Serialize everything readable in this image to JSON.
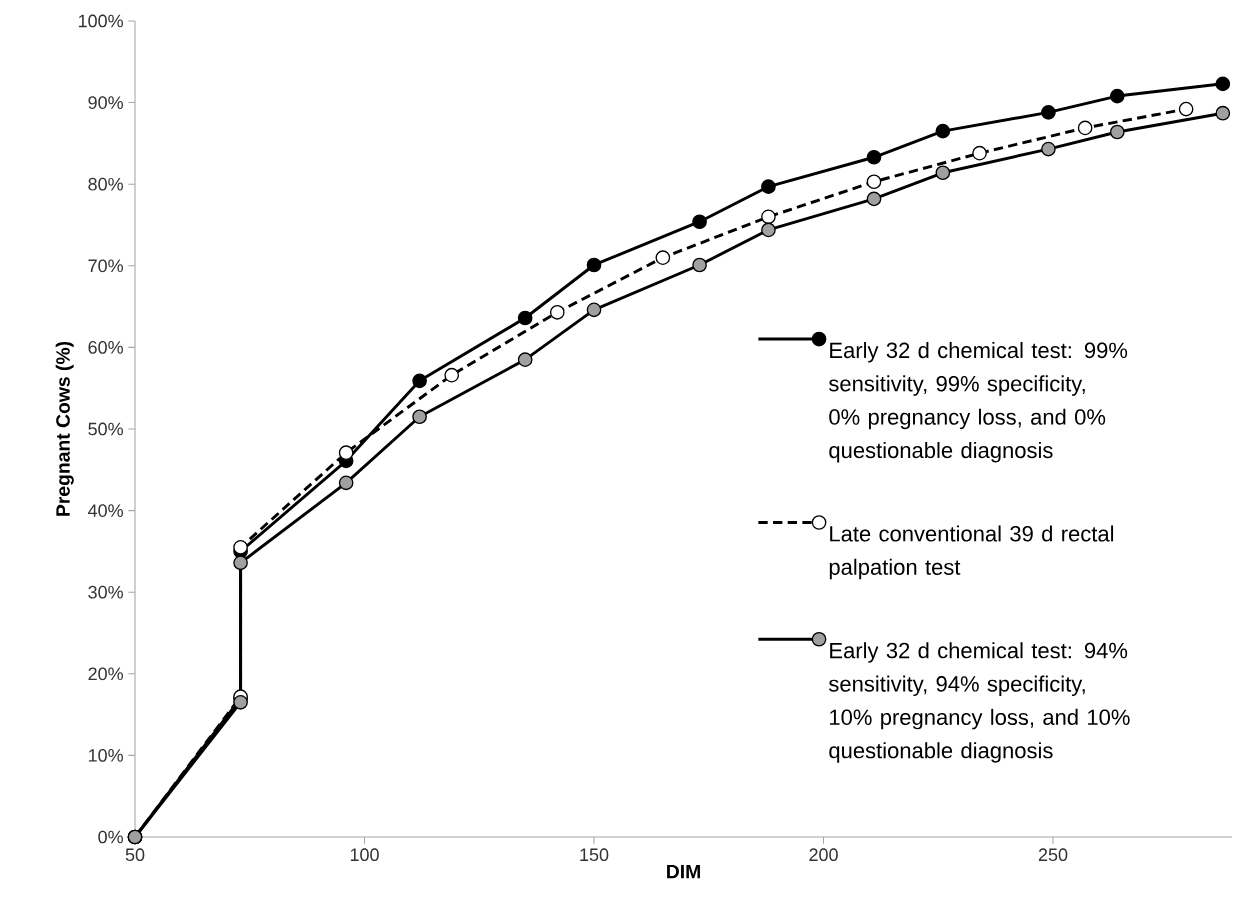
{
  "chart_data": {
    "type": "line",
    "xlabel": "DIM",
    "ylabel": "Pregnant Cows (%)",
    "xlim": [
      50,
      289
    ],
    "ylim": [
      0,
      100
    ],
    "xticks": [
      50,
      100,
      150,
      200,
      250
    ],
    "yticks": [
      {
        "value": 0,
        "label": "0%"
      },
      {
        "value": 10,
        "label": "10%"
      },
      {
        "value": 20,
        "label": "20%"
      },
      {
        "value": 30,
        "label": "30%"
      },
      {
        "value": 40,
        "label": "40%"
      },
      {
        "value": 50,
        "label": "50%"
      },
      {
        "value": 60,
        "label": "60%"
      },
      {
        "value": 70,
        "label": "70%"
      },
      {
        "value": 80,
        "label": "80%"
      },
      {
        "value": 90,
        "label": "90%"
      },
      {
        "value": 100,
        "label": "100%"
      }
    ],
    "grid": false,
    "legend": "right",
    "marker": "circle",
    "series": [
      {
        "name": "Early 32 d chemical test: 99% sensitivity, 99% specificity, 0% pregnancy loss, and 0% questionable diagnosis",
        "color": "#000000",
        "line_style": "solid",
        "x": [
          50,
          73,
          73,
          96,
          112,
          135,
          150,
          173,
          188,
          211,
          226,
          249,
          264,
          287
        ],
        "values": [
          0,
          17,
          35,
          46.1,
          55.9,
          63.6,
          70.1,
          75.4,
          79.7,
          83.3,
          86.5,
          88.8,
          90.8,
          92.3
        ]
      },
      {
        "name": "Late conventional 39 d rectal palpation test",
        "color": "#ffffff",
        "line_style": "dashed",
        "x": [
          50,
          73,
          73,
          96,
          119,
          142,
          165,
          188,
          211,
          234,
          257,
          279
        ],
        "values": [
          0,
          17.2,
          35.5,
          47.1,
          56.6,
          64.3,
          71.0,
          76.0,
          80.3,
          83.8,
          86.9,
          89.2
        ]
      },
      {
        "name": "Early 32 d chemical test: 94% sensitivity, 94% specificity, 10% pregnancy loss, and 10% questionable diagnosis",
        "color": "#a0a0a0",
        "line_style": "solid",
        "x": [
          50,
          73,
          73,
          96,
          112,
          135,
          150,
          173,
          188,
          211,
          226,
          249,
          264,
          287
        ],
        "values": [
          0,
          16.5,
          33.6,
          43.4,
          51.5,
          58.5,
          64.6,
          70.1,
          74.4,
          78.2,
          81.4,
          84.3,
          86.4,
          88.7
        ]
      }
    ]
  }
}
